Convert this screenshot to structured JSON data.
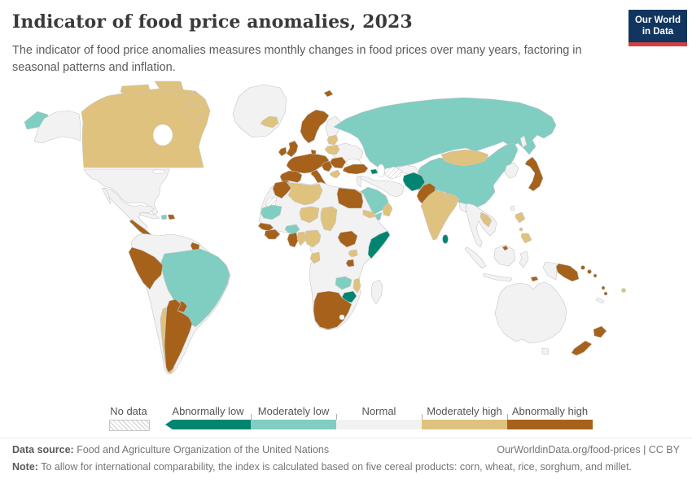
{
  "header": {
    "title": "Indicator of food price anomalies, 2023",
    "subtitle": "The indicator of food price anomalies measures monthly changes in food prices over many years, factoring in seasonal patterns and inflation.",
    "logo": {
      "line1": "Our World",
      "line2": "in Data",
      "bg_color": "#12355f",
      "accent_color": "#d13f3f"
    }
  },
  "legend": {
    "no_data_label": "No data",
    "categories": [
      {
        "id": "abnormally_low",
        "label": "Abnormally low"
      },
      {
        "id": "moderately_low",
        "label": "Moderately low"
      },
      {
        "id": "normal",
        "label": "Normal"
      },
      {
        "id": "moderately_high",
        "label": "Moderately high"
      },
      {
        "id": "abnormally_high",
        "label": "Abnormally high"
      }
    ]
  },
  "footer": {
    "datasource_label": "Data source:",
    "datasource_text": " Food and Agriculture Organization of the United Nations",
    "link_text": "OurWorldinData.org/food-prices | CC BY",
    "note_label": "Note:",
    "note_text": " To allow for international comparability, the index is calculated based on five cereal products: corn, wheat, rice, sorghum, and millet."
  },
  "chart_data": {
    "type": "heatmap",
    "title": "Indicator of food price anomalies, 2023",
    "legend_position": "bottom",
    "categories": [
      "Abnormally low",
      "Moderately low",
      "Normal",
      "Moderately high",
      "Abnormally high",
      "No data"
    ]
  },
  "map": {
    "colors": {
      "abnormally_low": "#018571",
      "moderately_low": "#80cdc1",
      "normal": "#f2f2f2",
      "moderately_high": "#dfc27d",
      "abnormally_high": "#a6611a"
    },
    "countries": {
      "canada": "moderately_high",
      "usa": "normal",
      "alaska": "normal",
      "chukotka": "moderately_low",
      "greenland": "normal",
      "iceland": "moderately_high",
      "mexico": "normal",
      "central_america": "abnormally_high",
      "panama_costa_rica": "normal",
      "cuba": "normal",
      "haiti": "moderately_low",
      "dominican_republic": "abnormally_high",
      "south_america_base": "normal",
      "guyana": "abnormally_high",
      "brazil": "moderately_low",
      "peru_ecuador": "abnormally_high",
      "paraguay": "abnormally_high",
      "chile": "moderately_high",
      "argentina": "abnormally_high",
      "scandinavia": "abnormally_high",
      "finland": "normal",
      "denmark": "abnormally_high",
      "uk": "abnormally_high",
      "ireland": "abnormally_high",
      "east_europe": "normal",
      "france_germany": "abnormally_high",
      "iberia": "abnormally_high",
      "italy": "abnormally_high",
      "sicily": "abnormally_high",
      "poland": "moderately_high",
      "baltics": "moderately_high",
      "romania_bulgaria": "abnormally_high",
      "balkans": "abnormally_high",
      "greece": "moderately_high",
      "turkey": "abnormally_high",
      "armenia": "abnormally_low",
      "svalbard": "abnormally_high",
      "russia": "moderately_low",
      "mongolia": "moderately_high",
      "china": "moderately_low",
      "korea": "normal",
      "sakhalin": "normal",
      "japan": "abnormally_high",
      "taiwan": "normal",
      "middle_east": "normal",
      "levant": "normal",
      "saudi_arabia": "moderately_low",
      "yemen": "moderately_low",
      "oman": "moderately_high",
      "central_asia": "normal",
      "turkmenistan_uzbekistan": "no_data",
      "afghanistan": "abnormally_low",
      "pakistan": "abnormally_high",
      "india": "moderately_high",
      "nepal": "moderately_high",
      "bangladesh": "normal",
      "sri_lanka": "abnormally_low",
      "se_asia_mainland": "normal",
      "laos": "moderately_high",
      "brunei": "abnormally_high",
      "indonesia": "normal",
      "timor": "abnormally_high",
      "philippines": "moderately_high",
      "png": "abnormally_high",
      "solomon_islands": "abnormally_high",
      "vanuatu": "abnormally_high",
      "fiji": "moderately_high",
      "new_caledonia": "normal",
      "australia": "normal",
      "new_zealand": "abnormally_high",
      "africa_base": "normal",
      "morocco": "abnormally_high",
      "western_sahara": "no_data",
      "algeria": "moderately_high",
      "egypt": "abnormally_high",
      "mauritania": "moderately_low",
      "niger": "moderately_high",
      "chad": "moderately_high",
      "eritrea": "moderately_high",
      "senegal": "abnormally_high",
      "guinea": "abnormally_high",
      "burkina_faso": "moderately_low",
      "ghana": "abnormally_high",
      "benin_togo": "moderately_high",
      "nigeria": "moderately_high",
      "gabon": "moderately_high",
      "south_sudan": "abnormally_high",
      "somalia": "abnormally_low",
      "uganda": "moderately_high",
      "rwanda_burundi": "abnormally_high",
      "zambia": "moderately_low",
      "malawi": "moderately_high",
      "zimbabwe": "abnormally_low",
      "southern_africa": "abnormally_high",
      "madagascar": "normal"
    }
  }
}
